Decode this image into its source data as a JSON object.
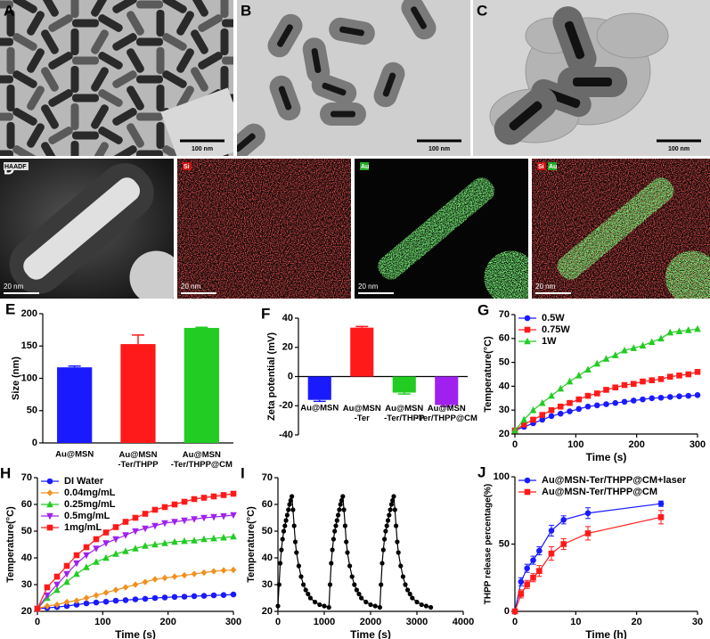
{
  "images": [
    {
      "label": "A",
      "scale_bar": "100 nm"
    },
    {
      "label": "B",
      "scale_bar": "100 nm"
    },
    {
      "label": "C",
      "scale_bar": "100 nm"
    },
    {
      "label": "D",
      "tag": "HAADF",
      "scale_bar": "20 nm"
    },
    {
      "tag": "Si",
      "scale_bar": "20 nm"
    },
    {
      "tag": "Au",
      "scale_bar": "20 nm"
    },
    {
      "tags": [
        "Si",
        "Au"
      ],
      "scale_bar": "20 nm"
    }
  ],
  "chart_data": [
    {
      "type": "bar",
      "label": "E",
      "ylabel": "Size (nm)",
      "categories": [
        "Au@MSN",
        "Au@MSN\n-Ter/THPP",
        "Au@MSN\n-Ter/THPP@CM"
      ],
      "values": [
        117,
        153,
        178
      ],
      "errors": [
        2,
        14,
        1
      ],
      "colors": [
        "#1a1aff",
        "#ff1a1a",
        "#22cc22"
      ],
      "ylim": [
        0,
        200
      ],
      "yticks": [
        0,
        50,
        100,
        150,
        200
      ]
    },
    {
      "type": "bar",
      "label": "F",
      "ylabel": "Zeta potential (mV)",
      "categories": [
        "Au@MSN",
        "Au@MSN\n-Ter",
        "Au@MSN\n-Ter/THPP",
        "Au@MSN\n-Ter/THPP@CM"
      ],
      "values": [
        -16,
        33.5,
        -11,
        -19.5
      ],
      "errors": [
        1,
        0.8,
        1,
        1
      ],
      "colors": [
        "#1a1aff",
        "#ff1a1a",
        "#22cc22",
        "#a020f0"
      ],
      "ylim": [
        -40,
        40
      ],
      "yticks": [
        -40,
        -20,
        0,
        20,
        40
      ]
    },
    {
      "type": "line",
      "label": "G",
      "xlabel": "Time (s)",
      "ylabel": "Temperature(°C)",
      "legend": "upper left",
      "x": [
        0,
        15,
        30,
        45,
        60,
        75,
        90,
        105,
        120,
        135,
        150,
        165,
        180,
        195,
        210,
        225,
        240,
        255,
        270,
        285,
        300
      ],
      "xlim": [
        0,
        300
      ],
      "xticks": [
        0,
        100,
        200,
        300
      ],
      "ylim": [
        20,
        70
      ],
      "yticks": [
        20,
        30,
        40,
        50,
        60,
        70
      ],
      "series": [
        {
          "name": "0.5W",
          "color": "#1a1aff",
          "marker": "circle",
          "values": [
            21.5,
            23,
            24.5,
            26,
            27.5,
            28.5,
            29.5,
            30.5,
            31.5,
            32,
            32.5,
            33,
            33.5,
            34,
            34.5,
            35,
            35.2,
            35.5,
            35.8,
            36,
            36.3
          ]
        },
        {
          "name": "0.75W",
          "color": "#ff1a1a",
          "marker": "square",
          "values": [
            21.5,
            24,
            26,
            28,
            30,
            31.5,
            33,
            34.5,
            36,
            37,
            38.5,
            39.5,
            40.5,
            41,
            42,
            42.5,
            43,
            44,
            44.5,
            45,
            46
          ]
        },
        {
          "name": "1W",
          "color": "#22cc22",
          "marker": "triangle",
          "values": [
            21.5,
            26,
            30,
            33,
            36,
            39,
            42,
            44.5,
            47,
            49.5,
            51.5,
            53,
            55,
            56,
            57,
            58.5,
            60,
            62.5,
            63,
            63.5,
            64
          ]
        }
      ]
    },
    {
      "type": "line",
      "label": "H",
      "xlabel": "Time (s)",
      "ylabel": "Temperature(°C)",
      "legend": "upper left",
      "x": [
        0,
        15,
        30,
        45,
        60,
        75,
        90,
        105,
        120,
        135,
        150,
        165,
        180,
        195,
        210,
        225,
        240,
        255,
        270,
        285,
        300
      ],
      "xlim": [
        0,
        300
      ],
      "xticks": [
        0,
        100,
        200,
        300
      ],
      "ylim": [
        20,
        70
      ],
      "yticks": [
        20,
        30,
        40,
        50,
        60,
        70
      ],
      "series": [
        {
          "name": "DI Water",
          "color": "#1a1aff",
          "marker": "circle",
          "values": [
            21,
            21.3,
            21.6,
            22,
            22.5,
            23,
            23.3,
            23.6,
            24,
            24.2,
            24.5,
            24.7,
            25,
            25.2,
            25.4,
            25.5,
            25.7,
            25.8,
            26,
            26.1,
            26.3
          ]
        },
        {
          "name": "0.04mg/mL",
          "color": "#f0901e",
          "marker": "diamond",
          "values": [
            21,
            22,
            22.5,
            23.5,
            24,
            25,
            26,
            27,
            28,
            29,
            30,
            31,
            32,
            32.5,
            33,
            33.5,
            34,
            34.5,
            35,
            35.3,
            35.5
          ]
        },
        {
          "name": "0.25mg/mL",
          "color": "#22cc22",
          "marker": "triangle",
          "values": [
            21,
            25,
            28,
            31,
            34,
            36.5,
            38.5,
            40,
            41.5,
            42.5,
            43.5,
            44.5,
            45,
            45.5,
            46,
            46.3,
            46.5,
            47,
            47.3,
            47.6,
            48
          ]
        },
        {
          "name": "0.5mg/mL",
          "color": "#a020f0",
          "marker": "triangle-down",
          "values": [
            21,
            26,
            30,
            34,
            38,
            41,
            43.5,
            45.5,
            47,
            48.5,
            50,
            51,
            52,
            53,
            53.5,
            54,
            54.5,
            55,
            55.3,
            55.6,
            56
          ]
        },
        {
          "name": "1mg/mL",
          "color": "#ff1a1a",
          "marker": "square",
          "values": [
            21,
            29,
            33,
            37,
            41,
            44,
            47,
            49.5,
            51.5,
            53.5,
            55,
            56.5,
            58,
            59,
            60,
            61,
            62,
            62.5,
            63,
            63.5,
            64
          ]
        }
      ]
    },
    {
      "type": "line",
      "label": "I",
      "xlabel": "Time (s)",
      "ylabel": "Temperature(°C)",
      "x": [
        0,
        25,
        50,
        75,
        100,
        125,
        150,
        175,
        200,
        225,
        250,
        275,
        300,
        325,
        350,
        375,
        400,
        450,
        500,
        550,
        600,
        650,
        700,
        800,
        900,
        1000,
        1100,
        1125,
        1150,
        1175,
        1200,
        1225,
        1250,
        1275,
        1300,
        1325,
        1350,
        1375,
        1400,
        1425,
        1450,
        1475,
        1500,
        1550,
        1600,
        1650,
        1700,
        1750,
        1800,
        1900,
        2000,
        2100,
        2200,
        2225,
        2250,
        2275,
        2300,
        2325,
        2350,
        2375,
        2400,
        2425,
        2450,
        2475,
        2500,
        2525,
        2550,
        2575,
        2600,
        2650,
        2700,
        2750,
        2800,
        2850,
        2900,
        3000,
        3100,
        3200,
        3300
      ],
      "xlim": [
        0,
        4000
      ],
      "xticks": [
        0,
        1000,
        2000,
        3000,
        4000
      ],
      "ylim": [
        20,
        70
      ],
      "yticks": [
        20,
        30,
        40,
        50,
        60,
        70
      ],
      "series": [
        {
          "color": "#000000",
          "marker": "circle",
          "values": [
            22,
            30,
            38,
            43,
            47,
            50,
            52,
            54,
            56,
            58,
            60,
            61.5,
            63,
            58,
            52,
            46,
            42,
            37,
            33,
            30,
            28,
            26.5,
            25,
            23.5,
            22.5,
            22,
            21.5,
            30,
            38,
            43,
            47,
            50,
            52,
            54,
            56,
            58,
            60,
            61.5,
            63,
            58,
            52,
            46,
            42,
            37,
            33,
            30,
            28,
            26.5,
            25,
            23.5,
            22.5,
            22,
            21.5,
            30,
            38,
            43,
            47,
            50,
            52,
            54,
            56,
            58,
            60,
            61.5,
            63,
            58,
            52,
            46,
            42,
            37,
            33,
            30,
            28,
            26.5,
            25,
            23.5,
            22.5,
            22,
            21.5
          ]
        }
      ]
    },
    {
      "type": "line",
      "label": "J",
      "xlabel": "Time (h)",
      "ylabel": "THPP release percentage(%)",
      "legend": "upper left",
      "x": [
        0,
        1,
        2,
        3,
        4,
        6,
        8,
        12,
        24
      ],
      "xlim": [
        0,
        30
      ],
      "xticks": [
        0,
        10,
        20,
        30
      ],
      "ylim": [
        0,
        100
      ],
      "yticks": [
        0,
        50,
        100
      ],
      "series": [
        {
          "name": "Au@MSN-Ter/THPP@CM+laser",
          "color": "#1a1aff",
          "marker": "circle",
          "values": [
            0,
            22,
            32,
            38,
            45,
            60,
            68,
            73,
            80
          ],
          "errors": [
            0,
            3,
            3,
            3,
            3,
            4,
            3,
            4,
            2
          ]
        },
        {
          "name": "Au@MSN-Ter/THPP@CM",
          "color": "#ff1a1a",
          "marker": "square",
          "values": [
            0,
            13,
            20,
            25,
            30,
            43,
            50,
            58,
            70
          ],
          "errors": [
            0,
            3,
            3,
            3,
            4,
            5,
            4,
            5,
            5
          ]
        }
      ]
    }
  ]
}
